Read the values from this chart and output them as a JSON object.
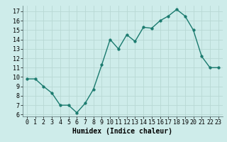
{
  "title": "",
  "xlabel": "Humidex (Indice chaleur)",
  "x": [
    0,
    1,
    2,
    3,
    4,
    5,
    6,
    7,
    8,
    9,
    10,
    11,
    12,
    13,
    14,
    15,
    16,
    17,
    18,
    19,
    20,
    21,
    22,
    23
  ],
  "y": [
    9.8,
    9.8,
    9.0,
    8.3,
    7.0,
    7.0,
    6.2,
    7.2,
    8.7,
    11.3,
    14.0,
    13.0,
    14.5,
    13.8,
    15.3,
    15.2,
    16.0,
    16.5,
    17.2,
    16.5,
    15.0,
    12.2,
    11.0,
    11.0
  ],
  "line_color": "#1a7a6e",
  "bg_color": "#ceecea",
  "grid_color": "#b8d8d4",
  "xlim": [
    -0.5,
    23.5
  ],
  "ylim": [
    5.8,
    17.6
  ],
  "yticks": [
    6,
    7,
    8,
    9,
    10,
    11,
    12,
    13,
    14,
    15,
    16,
    17
  ],
  "xticks": [
    0,
    1,
    2,
    3,
    4,
    5,
    6,
    7,
    8,
    9,
    10,
    11,
    12,
    13,
    14,
    15,
    16,
    17,
    18,
    19,
    20,
    21,
    22,
    23
  ],
  "marker_size": 2.5,
  "line_width": 1.0,
  "tick_fontsize": 6.0,
  "xlabel_fontsize": 7.0
}
